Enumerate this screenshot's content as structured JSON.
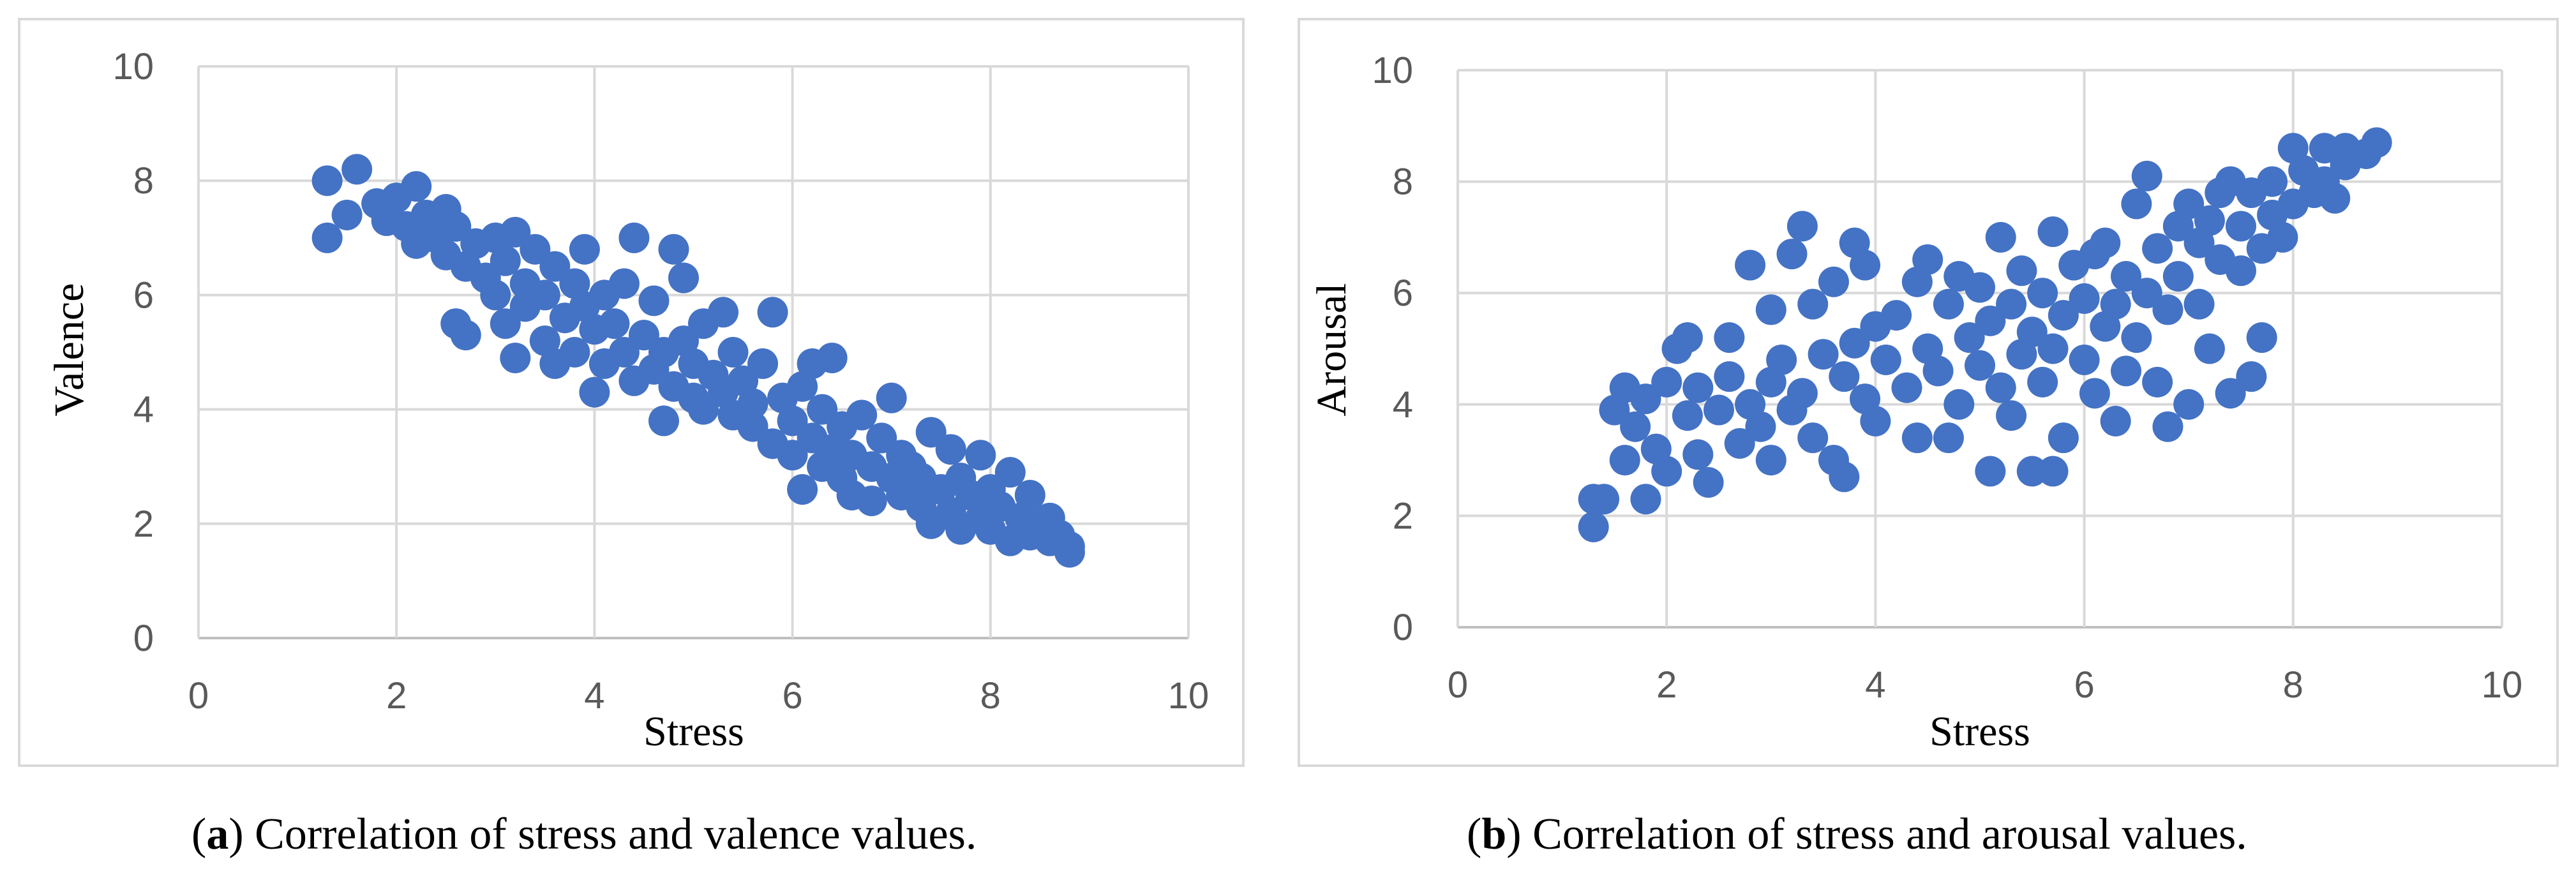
{
  "figures": [
    {
      "id": "a",
      "caption_label": "a",
      "caption_text": " Correlation of stress and valence values."
    },
    {
      "id": "b",
      "caption_label": "b",
      "caption_text": " Correlation of stress and arousal values."
    }
  ],
  "colors": {
    "points": "#4472C4",
    "grid": "#d9d9d9",
    "axis": "#bfbfbf",
    "tick_text": "#595959"
  },
  "chart_data": [
    {
      "type": "scatter",
      "title": "",
      "xlabel": "Stress",
      "ylabel": "Valence",
      "xlim": [
        0,
        10
      ],
      "ylim": [
        0,
        10
      ],
      "x_ticks": [
        0,
        2,
        4,
        6,
        8,
        10
      ],
      "y_ticks": [
        0,
        2,
        4,
        6,
        8,
        10
      ],
      "grid": true,
      "series": [
        {
          "name": "Valence",
          "color": "#4472C4",
          "points": [
            [
              1.3,
              8.0
            ],
            [
              1.3,
              7.0
            ],
            [
              1.6,
              8.2
            ],
            [
              1.5,
              7.4
            ],
            [
              1.8,
              7.6
            ],
            [
              1.9,
              7.3
            ],
            [
              2.0,
              7.7
            ],
            [
              2.1,
              7.2
            ],
            [
              2.2,
              7.9
            ],
            [
              2.2,
              6.9
            ],
            [
              2.3,
              7.4
            ],
            [
              2.4,
              7.0
            ],
            [
              2.5,
              6.7
            ],
            [
              2.5,
              7.5
            ],
            [
              2.6,
              7.2
            ],
            [
              2.6,
              5.5
            ],
            [
              2.7,
              6.5
            ],
            [
              2.7,
              5.3
            ],
            [
              2.8,
              6.9
            ],
            [
              2.9,
              6.3
            ],
            [
              3.0,
              7.0
            ],
            [
              3.0,
              6.0
            ],
            [
              3.1,
              6.6
            ],
            [
              3.1,
              5.5
            ],
            [
              3.2,
              7.1
            ],
            [
              3.2,
              4.9
            ],
            [
              3.3,
              6.2
            ],
            [
              3.3,
              5.8
            ],
            [
              3.4,
              6.8
            ],
            [
              3.5,
              6.0
            ],
            [
              3.5,
              5.2
            ],
            [
              3.6,
              6.5
            ],
            [
              3.6,
              4.8
            ],
            [
              3.7,
              5.6
            ],
            [
              3.8,
              6.2
            ],
            [
              3.8,
              5.0
            ],
            [
              3.9,
              6.8
            ],
            [
              3.9,
              5.8
            ],
            [
              4.0,
              4.3
            ],
            [
              4.0,
              5.4
            ],
            [
              4.1,
              6.0
            ],
            [
              4.1,
              4.8
            ],
            [
              4.2,
              5.5
            ],
            [
              4.3,
              5.0
            ],
            [
              4.3,
              6.2
            ],
            [
              4.4,
              7.0
            ],
            [
              4.4,
              4.5
            ],
            [
              4.5,
              5.3
            ],
            [
              4.6,
              5.9
            ],
            [
              4.6,
              4.7
            ],
            [
              4.7,
              5.0
            ],
            [
              4.7,
              3.8
            ],
            [
              4.8,
              6.8
            ],
            [
              4.8,
              4.4
            ],
            [
              4.9,
              5.2
            ],
            [
              4.9,
              6.3
            ],
            [
              5.0,
              4.8
            ],
            [
              5.0,
              4.2
            ],
            [
              5.1,
              5.5
            ],
            [
              5.1,
              4.0
            ],
            [
              5.2,
              4.6
            ],
            [
              5.3,
              5.7
            ],
            [
              5.3,
              4.3
            ],
            [
              5.4,
              3.9
            ],
            [
              5.4,
              5.0
            ],
            [
              5.5,
              4.5
            ],
            [
              5.6,
              4.1
            ],
            [
              5.6,
              3.7
            ],
            [
              5.7,
              4.8
            ],
            [
              5.8,
              3.4
            ],
            [
              5.8,
              5.7
            ],
            [
              5.9,
              4.2
            ],
            [
              6.0,
              3.8
            ],
            [
              6.0,
              3.2
            ],
            [
              6.1,
              4.4
            ],
            [
              6.1,
              2.6
            ],
            [
              6.2,
              4.8
            ],
            [
              6.2,
              3.5
            ],
            [
              6.3,
              3.0
            ],
            [
              6.3,
              4.0
            ],
            [
              6.4,
              4.9
            ],
            [
              6.4,
              3.3
            ],
            [
              6.5,
              3.7
            ],
            [
              6.5,
              2.8
            ],
            [
              6.6,
              3.2
            ],
            [
              6.6,
              2.5
            ],
            [
              6.7,
              3.9
            ],
            [
              6.8,
              3.0
            ],
            [
              6.8,
              2.4
            ],
            [
              6.9,
              3.5
            ],
            [
              7.0,
              4.2
            ],
            [
              7.0,
              2.8
            ],
            [
              7.1,
              3.2
            ],
            [
              7.1,
              2.5
            ],
            [
              7.2,
              3.0
            ],
            [
              7.3,
              2.3
            ],
            [
              7.3,
              2.8
            ],
            [
              7.4,
              3.6
            ],
            [
              7.4,
              2.0
            ],
            [
              7.5,
              2.6
            ],
            [
              7.6,
              3.3
            ],
            [
              7.6,
              2.2
            ],
            [
              7.7,
              2.8
            ],
            [
              7.7,
              1.9
            ],
            [
              7.8,
              2.5
            ],
            [
              7.9,
              2.1
            ],
            [
              7.9,
              3.2
            ],
            [
              8.0,
              2.6
            ],
            [
              8.0,
              1.9
            ],
            [
              8.1,
              2.3
            ],
            [
              8.2,
              1.7
            ],
            [
              8.2,
              2.9
            ],
            [
              8.3,
              2.1
            ],
            [
              8.4,
              2.5
            ],
            [
              8.4,
              1.8
            ],
            [
              8.5,
              2.0
            ],
            [
              8.6,
              1.7
            ],
            [
              8.6,
              2.1
            ],
            [
              8.7,
              1.8
            ],
            [
              8.8,
              1.6
            ],
            [
              8.8,
              1.5
            ]
          ]
        }
      ]
    },
    {
      "type": "scatter",
      "title": "",
      "xlabel": "Stress",
      "ylabel": "Arousal",
      "xlim": [
        0,
        10
      ],
      "ylim": [
        0,
        10
      ],
      "x_ticks": [
        0,
        2,
        4,
        6,
        8,
        10
      ],
      "y_ticks": [
        0,
        2,
        4,
        6,
        8,
        10
      ],
      "grid": true,
      "series": [
        {
          "name": "Arousal",
          "color": "#4472C4",
          "points": [
            [
              1.3,
              1.8
            ],
            [
              1.3,
              2.3
            ],
            [
              1.4,
              2.3
            ],
            [
              1.5,
              3.9
            ],
            [
              1.6,
              4.3
            ],
            [
              1.6,
              3.0
            ],
            [
              1.7,
              3.6
            ],
            [
              1.8,
              4.1
            ],
            [
              1.8,
              2.3
            ],
            [
              1.9,
              3.2
            ],
            [
              2.0,
              4.4
            ],
            [
              2.0,
              2.8
            ],
            [
              2.1,
              5.0
            ],
            [
              2.2,
              5.2
            ],
            [
              2.2,
              3.8
            ],
            [
              2.3,
              4.3
            ],
            [
              2.3,
              3.1
            ],
            [
              2.4,
              2.6
            ],
            [
              2.5,
              3.9
            ],
            [
              2.6,
              4.5
            ],
            [
              2.6,
              5.2
            ],
            [
              2.7,
              3.3
            ],
            [
              2.8,
              6.5
            ],
            [
              2.8,
              4.0
            ],
            [
              2.9,
              3.6
            ],
            [
              3.0,
              5.7
            ],
            [
              3.0,
              4.4
            ],
            [
              3.0,
              3.0
            ],
            [
              3.1,
              4.8
            ],
            [
              3.2,
              6.7
            ],
            [
              3.2,
              3.9
            ],
            [
              3.3,
              7.2
            ],
            [
              3.3,
              4.2
            ],
            [
              3.4,
              5.8
            ],
            [
              3.4,
              3.4
            ],
            [
              3.5,
              4.9
            ],
            [
              3.6,
              6.2
            ],
            [
              3.6,
              3.0
            ],
            [
              3.7,
              4.5
            ],
            [
              3.7,
              2.7
            ],
            [
              3.8,
              6.9
            ],
            [
              3.8,
              5.1
            ],
            [
              3.9,
              4.1
            ],
            [
              3.9,
              6.5
            ],
            [
              4.0,
              5.4
            ],
            [
              4.0,
              3.7
            ],
            [
              4.1,
              4.8
            ],
            [
              4.2,
              5.6
            ],
            [
              4.3,
              4.3
            ],
            [
              4.4,
              6.2
            ],
            [
              4.4,
              3.4
            ],
            [
              4.5,
              5.0
            ],
            [
              4.5,
              6.6
            ],
            [
              4.6,
              4.6
            ],
            [
              4.7,
              3.4
            ],
            [
              4.7,
              5.8
            ],
            [
              4.8,
              4.0
            ],
            [
              4.8,
              6.3
            ],
            [
              4.9,
              5.2
            ],
            [
              5.0,
              4.7
            ],
            [
              5.0,
              6.1
            ],
            [
              5.1,
              2.8
            ],
            [
              5.1,
              5.5
            ],
            [
              5.2,
              4.3
            ],
            [
              5.2,
              7.0
            ],
            [
              5.3,
              5.8
            ],
            [
              5.3,
              3.8
            ],
            [
              5.4,
              6.4
            ],
            [
              5.4,
              4.9
            ],
            [
              5.5,
              2.8
            ],
            [
              5.5,
              5.3
            ],
            [
              5.6,
              4.4
            ],
            [
              5.6,
              6.0
            ],
            [
              5.7,
              7.1
            ],
            [
              5.7,
              2.8
            ],
            [
              5.7,
              5.0
            ],
            [
              5.8,
              3.4
            ],
            [
              5.8,
              5.6
            ],
            [
              5.9,
              6.5
            ],
            [
              6.0,
              4.8
            ],
            [
              6.0,
              5.9
            ],
            [
              6.1,
              6.7
            ],
            [
              6.1,
              4.2
            ],
            [
              6.2,
              5.4
            ],
            [
              6.2,
              6.9
            ],
            [
              6.3,
              3.7
            ],
            [
              6.3,
              5.8
            ],
            [
              6.4,
              6.3
            ],
            [
              6.4,
              4.6
            ],
            [
              6.5,
              7.6
            ],
            [
              6.5,
              5.2
            ],
            [
              6.6,
              8.1
            ],
            [
              6.6,
              6.0
            ],
            [
              6.7,
              4.4
            ],
            [
              6.7,
              6.8
            ],
            [
              6.8,
              3.6
            ],
            [
              6.8,
              5.7
            ],
            [
              6.9,
              7.2
            ],
            [
              6.9,
              6.3
            ],
            [
              7.0,
              4.0
            ],
            [
              7.0,
              7.6
            ],
            [
              7.1,
              5.8
            ],
            [
              7.1,
              6.9
            ],
            [
              7.2,
              7.3
            ],
            [
              7.2,
              5.0
            ],
            [
              7.3,
              6.6
            ],
            [
              7.3,
              7.8
            ],
            [
              7.4,
              4.2
            ],
            [
              7.4,
              8.0
            ],
            [
              7.5,
              6.4
            ],
            [
              7.5,
              7.2
            ],
            [
              7.6,
              4.5
            ],
            [
              7.6,
              7.8
            ],
            [
              7.7,
              5.2
            ],
            [
              7.7,
              6.8
            ],
            [
              7.8,
              7.4
            ],
            [
              7.8,
              8.0
            ],
            [
              7.9,
              7.0
            ],
            [
              8.0,
              8.6
            ],
            [
              8.0,
              7.6
            ],
            [
              8.1,
              8.2
            ],
            [
              8.2,
              7.8
            ],
            [
              8.3,
              8.6
            ],
            [
              8.3,
              8.0
            ],
            [
              8.4,
              7.7
            ],
            [
              8.5,
              8.6
            ],
            [
              8.5,
              8.3
            ],
            [
              8.7,
              8.5
            ],
            [
              8.8,
              8.7
            ]
          ]
        }
      ]
    }
  ]
}
